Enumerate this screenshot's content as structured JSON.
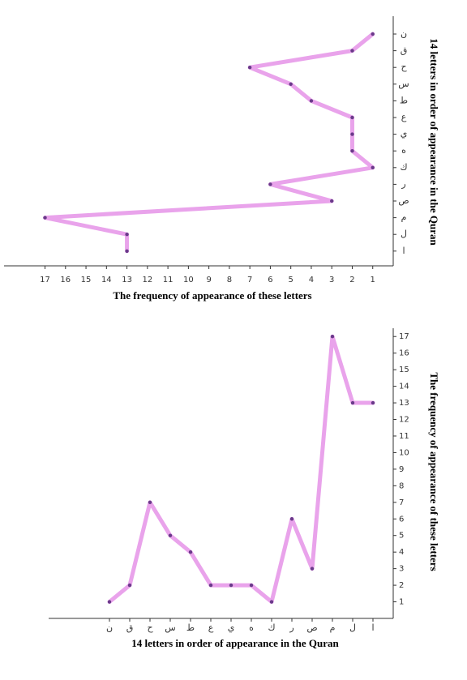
{
  "chart_data": [
    {
      "type": "line",
      "orientation": "horizontal",
      "y_label": "14 letters in order of appearance in the Quran",
      "x_label": "The frequency of appearance of these letters",
      "categories": [
        "ن",
        "ق",
        "ح",
        "س",
        "ط",
        "ع",
        "ي",
        "ه",
        "ك",
        "ر",
        "ص",
        "م",
        "ل",
        "ا"
      ],
      "values": [
        1,
        2,
        7,
        5,
        4,
        2,
        2,
        2,
        1,
        6,
        3,
        17,
        13,
        13
      ],
      "color": "#e38ce6",
      "xlim": [
        19,
        0
      ],
      "xticks": [
        17,
        16,
        15,
        14,
        13,
        12,
        11,
        10,
        9,
        8,
        7,
        6,
        5,
        4,
        3,
        2,
        1
      ]
    },
    {
      "type": "line",
      "orientation": "vertical",
      "x_label": "14 letters in order of appearance in the Quran",
      "y_label": "The frequency of appearance of these letters",
      "categories": [
        "ن",
        "ق",
        "ح",
        "س",
        "ط",
        "ع",
        "ي",
        "ه",
        "ك",
        "ر",
        "ص",
        "م",
        "ل",
        "ا"
      ],
      "values": [
        1,
        2,
        7,
        5,
        4,
        2,
        2,
        2,
        1,
        6,
        3,
        17,
        13,
        13
      ],
      "color": "#e38ce6",
      "ylim": [
        0,
        17.5
      ],
      "yticks": [
        1,
        2,
        3,
        4,
        5,
        6,
        7,
        8,
        9,
        10,
        11,
        12,
        13,
        14,
        15,
        16,
        17
      ]
    }
  ]
}
